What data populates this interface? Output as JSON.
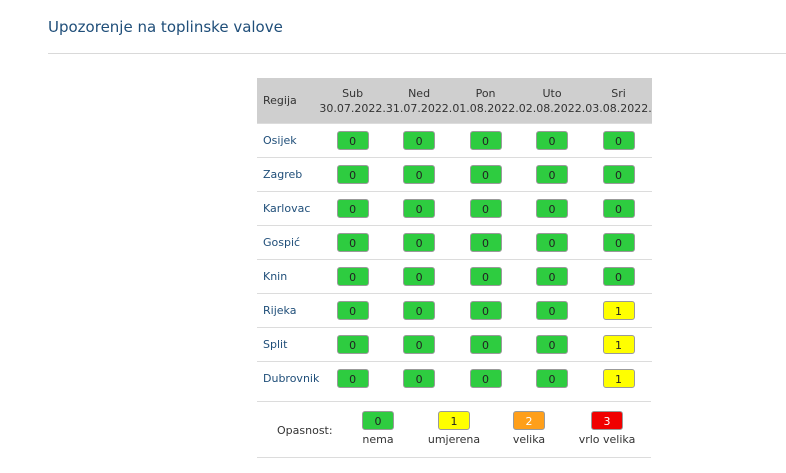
{
  "page": {
    "title": "Upozorenje na toplinske valove"
  },
  "table": {
    "region_header": "Regija",
    "days": [
      {
        "name": "Sub",
        "date": "30.07.2022."
      },
      {
        "name": "Ned",
        "date": "31.07.2022."
      },
      {
        "name": "Pon",
        "date": "01.08.2022."
      },
      {
        "name": "Uto",
        "date": "02.08.2022."
      },
      {
        "name": "Sri",
        "date": "03.08.2022."
      }
    ],
    "rows": [
      {
        "region": "Osijek",
        "values": [
          "0",
          "0",
          "0",
          "0",
          "0"
        ]
      },
      {
        "region": "Zagreb",
        "values": [
          "0",
          "0",
          "0",
          "0",
          "0"
        ]
      },
      {
        "region": "Karlovac",
        "values": [
          "0",
          "0",
          "0",
          "0",
          "0"
        ]
      },
      {
        "region": "Gospić",
        "values": [
          "0",
          "0",
          "0",
          "0",
          "0"
        ]
      },
      {
        "region": "Knin",
        "values": [
          "0",
          "0",
          "0",
          "0",
          "0"
        ]
      },
      {
        "region": "Rijeka",
        "values": [
          "0",
          "0",
          "0",
          "0",
          "1"
        ]
      },
      {
        "region": "Split",
        "values": [
          "0",
          "0",
          "0",
          "0",
          "1"
        ]
      },
      {
        "region": "Dubrovnik",
        "values": [
          "0",
          "0",
          "0",
          "0",
          "1"
        ]
      }
    ]
  },
  "legend": {
    "label": "Opasnost:",
    "items": [
      {
        "value": "0",
        "text": "nema"
      },
      {
        "value": "1",
        "text": "umjerena"
      },
      {
        "value": "2",
        "text": "velika"
      },
      {
        "value": "3",
        "text": "vrlo velika"
      }
    ]
  },
  "colors": {
    "0": "#2ecc40",
    "1": "#ffff00",
    "2": "#ff9f1a",
    "3": "#f00000",
    "title": "#1f4e79"
  }
}
